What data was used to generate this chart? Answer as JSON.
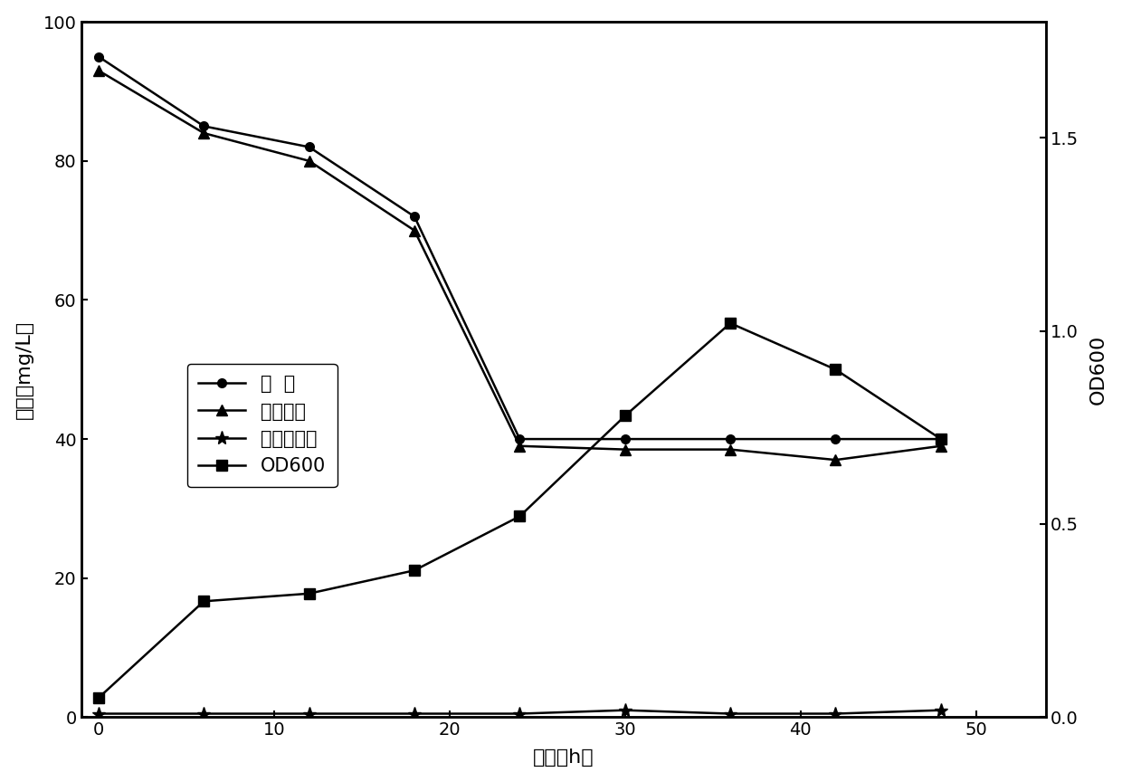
{
  "time": [
    0,
    6,
    12,
    18,
    24,
    30,
    36,
    42,
    48
  ],
  "total_nitrogen": [
    95,
    85,
    82,
    72,
    40,
    40,
    40,
    40,
    40
  ],
  "nitrate_nitrogen": [
    93,
    84,
    80,
    70,
    39,
    38.5,
    38.5,
    37,
    39
  ],
  "nitrite_nitrogen": [
    0.5,
    0.5,
    0.5,
    0.5,
    0.5,
    1.0,
    0.5,
    0.5,
    1.0
  ],
  "od600": [
    0.05,
    0.3,
    0.32,
    0.38,
    0.52,
    0.78,
    1.02,
    0.9,
    0.72
  ],
  "left_ylim": [
    0,
    100
  ],
  "right_ylim": [
    0.0,
    1.8
  ],
  "xlim": [
    -1,
    54
  ],
  "xticks": [
    0,
    10,
    20,
    30,
    40,
    50
  ],
  "left_yticks": [
    0,
    20,
    40,
    60,
    80,
    100
  ],
  "right_yticks": [
    0.0,
    0.5,
    1.0,
    1.5
  ],
  "right_ytick_labels": [
    "0.0",
    "0.5",
    "1.0",
    "1.5"
  ],
  "xlabel": "时段（h）",
  "ylabel_left": "含量（mg/L）",
  "ylabel_right": "OD600",
  "legend_labels": [
    "总  氮",
    "确酸盐氮",
    "亚确酸盐氮",
    "OD600"
  ],
  "line_color": "#000000",
  "bg_color": "#ffffff",
  "font_size": 15,
  "tick_font_size": 14,
  "label_font_size": 16,
  "linewidth": 1.8,
  "markersize_circle": 7,
  "markersize_triangle": 8,
  "markersize_star": 11,
  "markersize_square": 8
}
